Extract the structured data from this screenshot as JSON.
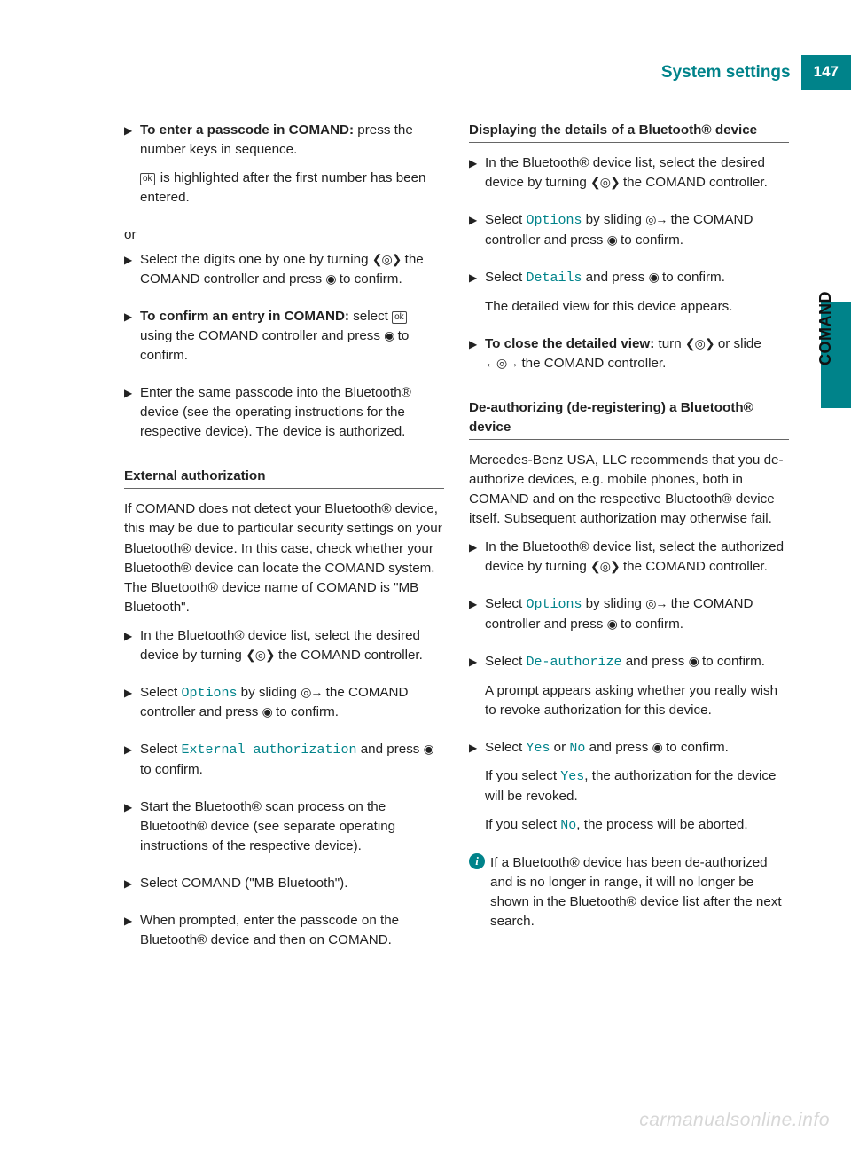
{
  "header": {
    "title": "System settings",
    "page": "147"
  },
  "side_label": "COMAND",
  "watermark": "carmanualsonline.info",
  "colors": {
    "accent": "#00838a",
    "text": "#222222",
    "rule": "#666666",
    "watermark": "#d7d7d7"
  },
  "glyphs": {
    "step": "▶",
    "ok": "ok",
    "turn": "❮◎❯",
    "press": "◉",
    "slide_right": "◎→",
    "slide_lr": "←◎→",
    "info": "i"
  },
  "left": {
    "s1_bold": "To enter a passcode in COMAND:",
    "s1_rest": " press the number keys in sequence.",
    "s1_p2a": " is highlighted after the first number has been entered.",
    "or": "or",
    "s2a": "Select the digits one by one by turning ",
    "s2b": " the COMAND controller and press ",
    "s2c": " to confirm.",
    "s3_bold": "To confirm an entry in COMAND:",
    "s3a": " select ",
    "s3b": " using the COMAND controller and press ",
    "s3c": " to confirm.",
    "s4": "Enter the same passcode into the Bluetooth® device (see the operating instructions for the respective device). The device is authorized.",
    "h1": "External authorization",
    "p1": "If COMAND does not detect your Bluetooth® device, this may be due to particular security settings on your Bluetooth® device. In this case, check whether your Bluetooth® device can locate the COMAND system. The Bluetooth® device name of COMAND is \"MB Bluetooth\".",
    "s5a": "In the Bluetooth® device list, select the desired device by turning ",
    "s5b": " the COMAND controller.",
    "s6a": "Select ",
    "s6_opt": "Options",
    "s6b": " by sliding ",
    "s6c": " the COMAND controller and press ",
    "s6d": " to confirm.",
    "s7a": "Select ",
    "s7_opt": "External authorization",
    "s7b": " and press ",
    "s7c": " to confirm.",
    "s8": "Start the Bluetooth® scan process on the Bluetooth® device (see separate operating instructions of the respective device).",
    "s9": "Select COMAND (\"MB Bluetooth\").",
    "s10": "When prompted, enter the passcode on the Bluetooth® device and then on COMAND."
  },
  "right": {
    "h1": "Displaying the details of a Bluetooth® device",
    "s1a": "In the Bluetooth® device list, select the desired device by turning ",
    "s1b": " the COMAND controller.",
    "s2a": "Select ",
    "s2_opt": "Options",
    "s2b": " by sliding ",
    "s2c": " the COMAND controller and press ",
    "s2d": " to confirm.",
    "s3a": "Select ",
    "s3_opt": "Details",
    "s3b": " and press ",
    "s3c": " to confirm.",
    "s3d": "The detailed view for this device appears.",
    "s4_bold": "To close the detailed view:",
    "s4a": " turn ",
    "s4b": " or slide ",
    "s4c": " the COMAND controller.",
    "h2": "De-authorizing (de-registering) a Bluetooth® device",
    "p1": "Mercedes-Benz USA, LLC recommends that you de-authorize devices, e.g. mobile phones, both in COMAND and on the respective Bluetooth® device itself. Subsequent authorization may otherwise fail.",
    "s5a": "In the Bluetooth® device list, select the authorized device by turning ",
    "s5b": " the COMAND controller.",
    "s6a": "Select ",
    "s6_opt": "Options",
    "s6b": " by sliding ",
    "s6c": " the COMAND controller and press ",
    "s6d": " to confirm.",
    "s7a": "Select ",
    "s7_opt": "De-authorize",
    "s7b": " and press ",
    "s7c": " to confirm.",
    "s7d": "A prompt appears asking whether you really wish to revoke authorization for this device.",
    "s8a": "Select ",
    "s8_yes": "Yes",
    "s8b": " or ",
    "s8_no": "No",
    "s8c": " and press ",
    "s8d": " to confirm.",
    "s8e": "If you select ",
    "s8f": ", the authorization for the device will be revoked.",
    "s8g": "If you select ",
    "s8h": ", the process will be aborted.",
    "info": "If a Bluetooth® device has been de-authorized and is no longer in range, it will no longer be shown in the Bluetooth® device list after the next search."
  }
}
